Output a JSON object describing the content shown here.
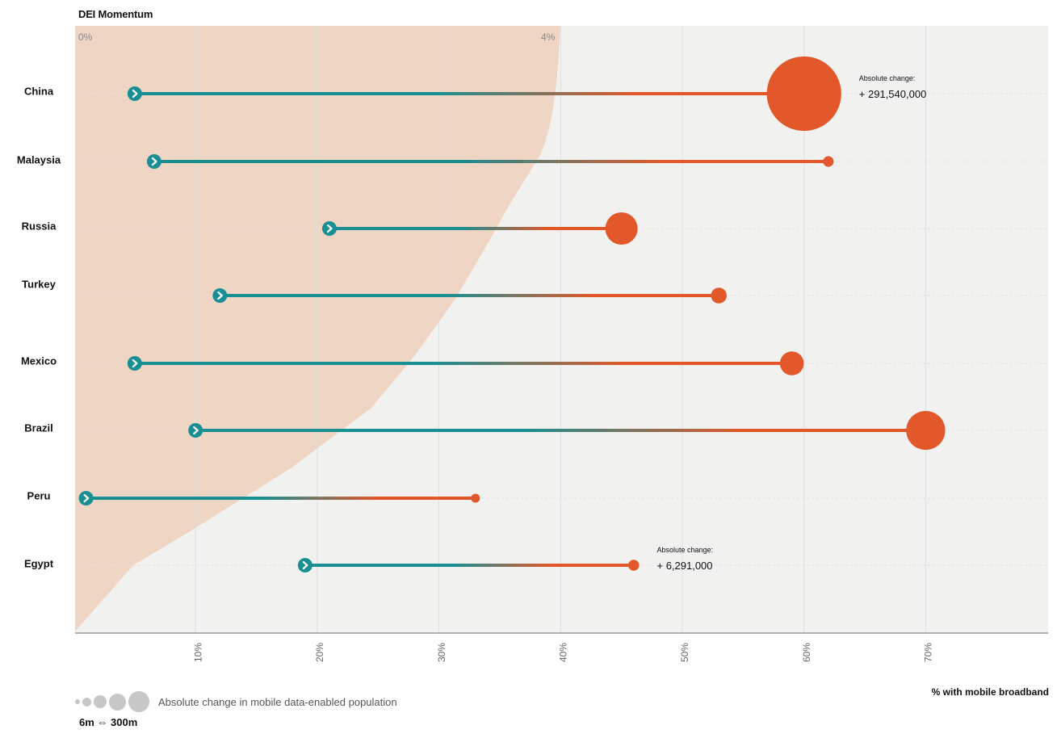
{
  "chart_data": {
    "type": "dumbbell",
    "title": "DEI Momentum",
    "xlabel": "% with mobile broadband",
    "xlim": [
      0,
      80
    ],
    "x_ticks": [
      "10%",
      "20%",
      "30%",
      "40%",
      "50%",
      "60%",
      "70%"
    ],
    "dei_axis": {
      "ticks": [
        "0%",
        "4%"
      ]
    },
    "size_legend": {
      "label": "Absolute change in mobile data-enabled population",
      "range": "6m ⇔ 300m"
    },
    "colors": {
      "start": "#1a8f93",
      "end": "#e2582a",
      "dei_area": "#efd5c4",
      "plot_bg": "#f1f1f0"
    },
    "series": [
      {
        "country": "China",
        "start": 5,
        "end": 60,
        "change_millions": 291.54,
        "annotation": {
          "label": "Absolute change:",
          "value": "+ 291,540,000"
        }
      },
      {
        "country": "Malaysia",
        "start": 6.6,
        "end": 62,
        "change_millions": 6
      },
      {
        "country": "Russia",
        "start": 21,
        "end": 45,
        "change_millions": 55
      },
      {
        "country": "Turkey",
        "start": 12,
        "end": 53,
        "change_millions": 13
      },
      {
        "country": "Mexico",
        "start": 5,
        "end": 59,
        "change_millions": 30
      },
      {
        "country": "Brazil",
        "start": 10,
        "end": 70,
        "change_millions": 80
      },
      {
        "country": "Peru",
        "start": 1,
        "end": 33,
        "change_millions": 4
      },
      {
        "country": "Egypt",
        "start": 19,
        "end": 46,
        "change_millions": 6.29,
        "annotation": {
          "label": "Absolute change:",
          "value": "+ 6,291,000"
        }
      }
    ]
  }
}
